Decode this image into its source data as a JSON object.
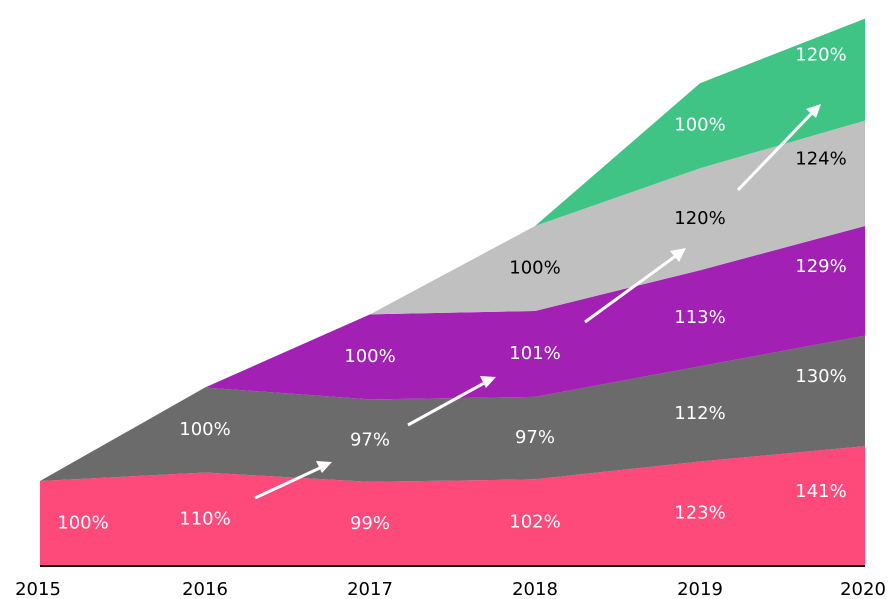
{
  "chart_data": {
    "type": "stacked_area",
    "categories": [
      "2015",
      "2016",
      "2017",
      "2018",
      "2019",
      "2020"
    ],
    "series": [
      {
        "color": "#fd4a7b",
        "label_color": "#ffffff",
        "values": [
          100,
          110,
          99,
          102,
          123,
          141
        ],
        "value_labels": [
          "100%",
          "110%",
          "99%",
          "102%",
          "123%",
          "141%"
        ]
      },
      {
        "color": "#6b6b6b",
        "label_color": "#ffffff",
        "values": [
          null,
          100,
          97,
          97,
          112,
          130
        ],
        "value_labels": [
          null,
          "100%",
          "97%",
          "97%",
          "112%",
          "130%"
        ]
      },
      {
        "color": "#a220b4",
        "label_color": "#ffffff",
        "values": [
          null,
          null,
          100,
          101,
          113,
          129
        ],
        "value_labels": [
          null,
          null,
          "100%",
          "101%",
          "113%",
          "129%"
        ]
      },
      {
        "color": "#c0c0c0",
        "label_color": "#000000",
        "values": [
          null,
          null,
          null,
          100,
          120,
          124
        ],
        "value_labels": [
          null,
          null,
          null,
          "100%",
          "120%",
          "124%"
        ]
      },
      {
        "color": "#40c486",
        "label_color": "#ffffff",
        "values": [
          null,
          null,
          null,
          null,
          100,
          120
        ],
        "value_labels": [
          null,
          null,
          null,
          null,
          "100%",
          "120%"
        ]
      }
    ]
  }
}
